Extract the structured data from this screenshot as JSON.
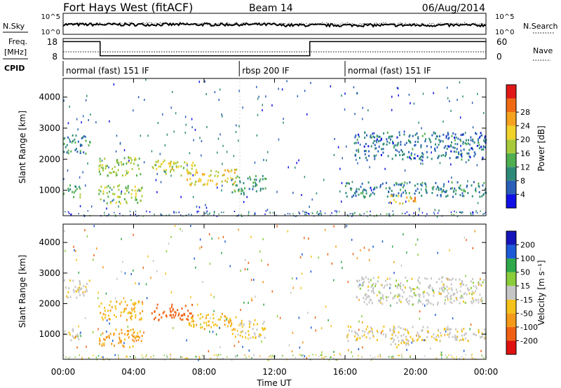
{
  "header": {
    "title": "Fort Hays West (fitACF)",
    "beam": "Beam 14",
    "date": "06/Aug/2014"
  },
  "labels": {
    "nsky": "N.Sky",
    "nsearch": "N.Search",
    "freq_top": "Freq.",
    "freq_unit": "[MHz]",
    "nave": "Nave",
    "cpid": "CPID",
    "xlabel": "Time UT",
    "ylabel": "Slant Range [km]",
    "power_label": "Power [dB]",
    "velocity_label": "Velocity [m s⁻¹]"
  },
  "noise_panel": {
    "left_ticks": [
      "10^5",
      "10^0"
    ],
    "right_ticks": [
      "10^5",
      "10^0"
    ]
  },
  "freq_panel": {
    "left_ticks": [
      "18",
      "8"
    ],
    "right_ticks": [
      "60",
      "0"
    ],
    "freq_steps": [
      [
        0,
        16.5
      ],
      [
        2.1,
        9.5
      ],
      [
        14.0,
        16.5
      ],
      [
        24,
        16.5
      ]
    ],
    "nave_level": 0.45
  },
  "cpid_segments": [
    {
      "label": "normal (fast) 151 IF",
      "start": 0,
      "end": 10
    },
    {
      "label": "rbsp 200 IF",
      "start": 10,
      "end": 16
    },
    {
      "label": "normal (fast) 151 IF",
      "start": 16,
      "end": 24
    }
  ],
  "chart_data": {
    "type": "heatmap",
    "x_ticks": [
      "00:00",
      "04:00",
      "08:00",
      "12:00",
      "16:00",
      "20:00",
      "00:00"
    ],
    "x_range_hours": [
      0,
      24
    ],
    "y_ticks": [
      "1000",
      "2000",
      "3000",
      "4000"
    ],
    "y_range_km": [
      180,
      4600
    ],
    "power_scale": {
      "ticks": [
        "4",
        "8",
        "12",
        "16",
        "20",
        "24",
        "28"
      ],
      "colors": [
        "#1010e6",
        "#2a5fb8",
        "#2e8a78",
        "#4fae4f",
        "#a8c93a",
        "#f0d22a",
        "#f5a21e",
        "#f06a14",
        "#e01818"
      ]
    },
    "velocity_scale": {
      "ticks": [
        "200",
        "100",
        "50",
        "15",
        "-15",
        "-50",
        "-100",
        "-200"
      ],
      "colors": [
        "#1414b8",
        "#1e5ad8",
        "#2ea84a",
        "#8acc3a",
        "#c6c6c6",
        "#f4c21a",
        "#f59a18",
        "#f06014",
        "#e01010"
      ]
    },
    "echo_regions": [
      {
        "t0": 0.0,
        "t1": 1.5,
        "r0": 2200,
        "r1": 2800,
        "power": 10,
        "vel": -5
      },
      {
        "t0": 0.0,
        "t1": 1.0,
        "r0": 800,
        "r1": 1200,
        "power": 12,
        "vel": -5
      },
      {
        "t0": 2.0,
        "t1": 4.5,
        "r0": 1500,
        "r1": 2100,
        "power": 18,
        "vel": -40
      },
      {
        "t0": 2.0,
        "t1": 4.5,
        "r0": 600,
        "r1": 1200,
        "power": 17,
        "vel": -60
      },
      {
        "t0": 5.0,
        "t1": 7.5,
        "r0": 1500,
        "r1": 2000,
        "power": 20,
        "vel": -180
      },
      {
        "t0": 7.0,
        "t1": 9.8,
        "r0": 1200,
        "r1": 1700,
        "power": 22,
        "vel": -40
      },
      {
        "t0": 9.5,
        "t1": 11.5,
        "r0": 900,
        "r1": 1500,
        "power": 12,
        "vel": -20
      },
      {
        "t0": 16.5,
        "t1": 24.0,
        "r0": 2000,
        "r1": 2900,
        "power": 8,
        "vel": 0
      },
      {
        "t0": 16.0,
        "t1": 24.0,
        "r0": 800,
        "r1": 1300,
        "power": 9,
        "vel": -10
      },
      {
        "t0": 18.5,
        "t1": 20.0,
        "r0": 600,
        "r1": 900,
        "power": 24,
        "vel": -10
      }
    ]
  }
}
